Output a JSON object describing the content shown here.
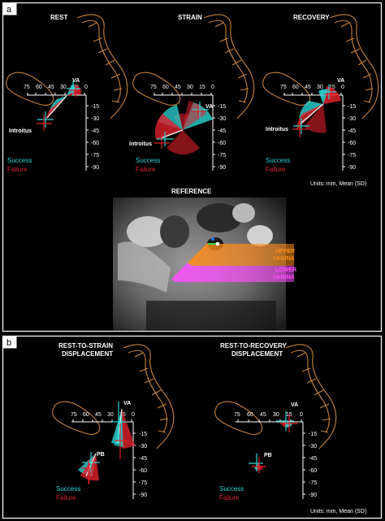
{
  "panel_a": {
    "letter": "a",
    "titles": [
      "REST",
      "STRAIN",
      "RECOVERY"
    ],
    "x_ticks": [
      "75",
      "60",
      "45",
      "30",
      "15",
      "0"
    ],
    "y_ticks": [
      "-15",
      "-30",
      "-45",
      "-60",
      "-75",
      "-90"
    ],
    "va_label": "VA",
    "introitus_label": "Introitus",
    "legend": {
      "success": "Success",
      "failure": "Failure"
    },
    "units": "Units: mm, Mean (SD)",
    "reference": {
      "title": "REFERENCE",
      "upper_line1": "UPPER",
      "upper_line2": "VAGINA",
      "lower_line1": "LOWER",
      "lower_line2": "VAGINA"
    }
  },
  "panel_b": {
    "letter": "b",
    "title1_line1": "REST-TO-STRAIN",
    "title1_line2": "DISPLACEMENT",
    "title2_line1": "REST-TO-RECOVERY",
    "title2_line2": "DISPLACEMENT",
    "x_ticks": [
      "75",
      "60",
      "45",
      "30",
      "15",
      "0"
    ],
    "y_ticks": [
      "-15",
      "-30",
      "-45",
      "-60",
      "-75",
      "-90"
    ],
    "va_label": "VA",
    "pb_label": "PB",
    "legend": {
      "success": "Success",
      "failure": "Failure"
    },
    "units": "Units: mm, Mean (SD)"
  },
  "colors": {
    "success": "#29d6d6",
    "failure": "#e0202a",
    "pelvis_outline": "#c8803c",
    "upper_vagina": "#ff8c1a",
    "lower_vagina": "#ff4dff",
    "panel_border": "#ffffff"
  }
}
